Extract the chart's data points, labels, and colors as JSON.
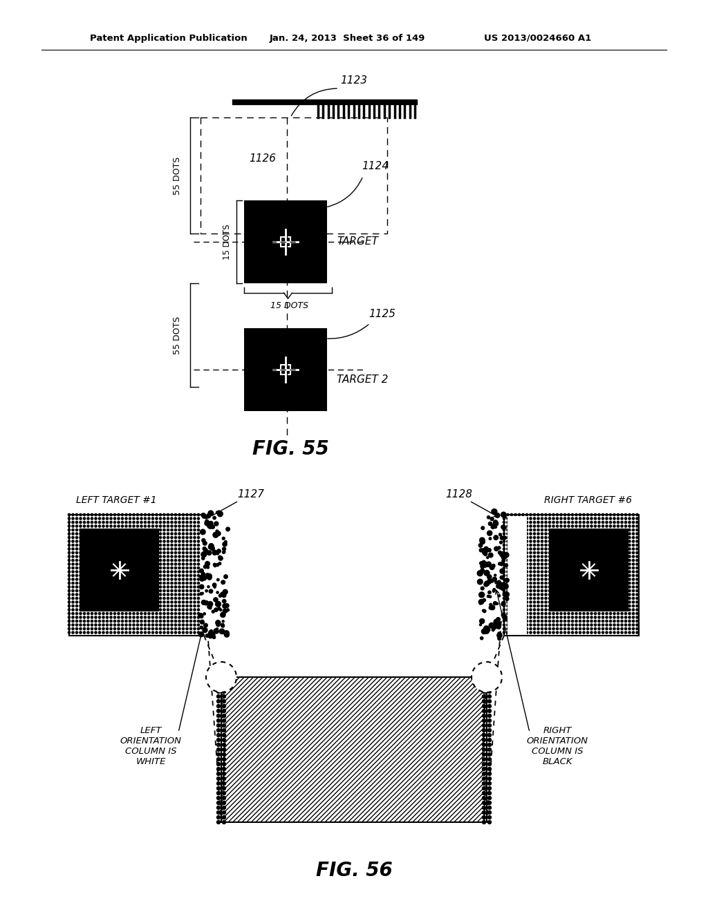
{
  "bg_color": "#ffffff",
  "header_left": "Patent Application Publication",
  "header_mid": "Jan. 24, 2013  Sheet 36 of 149",
  "header_right": "US 2013/0024660 A1",
  "fig55_label": "FIG. 55",
  "fig56_label": "FIG. 56",
  "label_1123": "1123",
  "label_1124": "1124",
  "label_1125": "1125",
  "label_1126": "1126",
  "label_1127": "1127",
  "label_1128": "1128",
  "text_target": "TARGET",
  "text_target2": "TARGET 2",
  "text_55dots_top": "55 DOTS",
  "text_55dots_bot": "55 DOTS",
  "text_15dots_v": "15 DOTS",
  "text_15dots_h": "15 DOTS",
  "text_left_target": "LEFT TARGET #1",
  "text_right_target": "RIGHT TARGET #6",
  "text_left_orient": "LEFT\nORIENTATION\nCOLUMN IS\nWHITE",
  "text_right_orient": "RIGHT\nORIENTATION\nCOLUMN IS\nBLACK"
}
